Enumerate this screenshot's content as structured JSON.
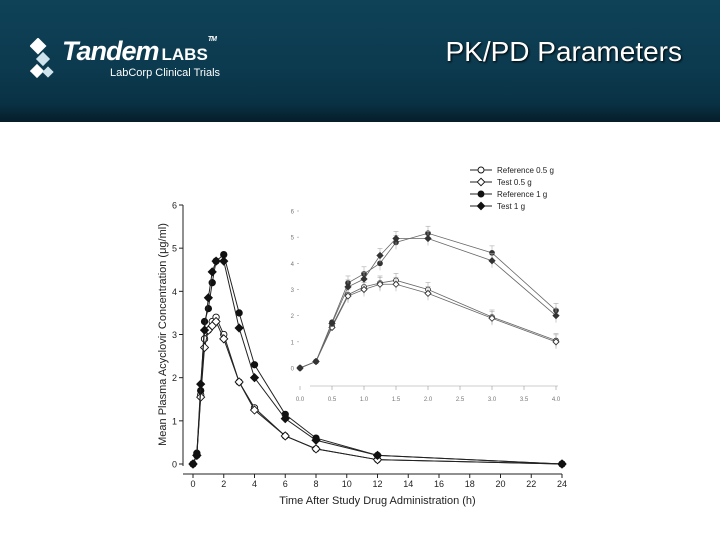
{
  "header": {
    "title": "PK/PD Parameters",
    "logo_brand": "Tandem",
    "logo_labs": "LABS",
    "logo_tm": "TM",
    "logo_sub": "LabCorp Clinical Trials",
    "logo_icon": "tandem-logo-icon",
    "bg_color": "#0c3a4f"
  },
  "chart_data": [
    {
      "type": "line",
      "xlabel": "Time After Study Drug Administration (h)",
      "ylabel": "Mean Plasma Acyclovir Concentration (μg/ml)",
      "xlim": [
        0,
        24
      ],
      "ylim": [
        0,
        6
      ],
      "xticks": [
        "0",
        "2",
        "4",
        "6",
        "8",
        "10",
        "12",
        "14",
        "16",
        "18",
        "20",
        "22",
        "24"
      ],
      "yticks": [
        "0",
        "1",
        "2",
        "3",
        "4",
        "5",
        "6"
      ],
      "grid": false,
      "series": [
        {
          "name": "Reference 0.5 g",
          "marker": "circle-open",
          "x": [
            0,
            0.25,
            0.5,
            0.75,
            1,
            1.25,
            1.5,
            2,
            3,
            4,
            6,
            8,
            12,
            24
          ],
          "y": [
            0.0,
            0.2,
            1.6,
            2.9,
            3.1,
            3.3,
            3.4,
            3.0,
            1.9,
            1.3,
            0.65,
            0.35,
            0.1,
            0.0
          ]
        },
        {
          "name": "Test 0.5 g",
          "marker": "diamond-open",
          "x": [
            0,
            0.25,
            0.5,
            0.75,
            1,
            1.25,
            1.5,
            2,
            3,
            4,
            6,
            8,
            12,
            24
          ],
          "y": [
            0.0,
            0.2,
            1.55,
            2.7,
            3.1,
            3.2,
            3.3,
            2.9,
            1.9,
            1.25,
            0.65,
            0.35,
            0.1,
            0.0
          ]
        },
        {
          "name": "Reference 1 g",
          "marker": "circle-filled",
          "x": [
            0,
            0.25,
            0.5,
            0.75,
            1,
            1.25,
            1.5,
            2,
            3,
            4,
            6,
            8,
            12,
            24
          ],
          "y": [
            0.0,
            0.25,
            1.7,
            3.3,
            3.6,
            4.2,
            4.7,
            4.85,
            3.5,
            2.3,
            1.15,
            0.6,
            0.2,
            0.0
          ]
        },
        {
          "name": "Test 1 g",
          "marker": "diamond-filled",
          "x": [
            0,
            0.25,
            0.5,
            0.75,
            1,
            1.25,
            1.5,
            2,
            3,
            4,
            6,
            8,
            12,
            24
          ],
          "y": [
            0.0,
            0.2,
            1.85,
            3.1,
            3.85,
            4.45,
            4.7,
            4.7,
            3.15,
            2.0,
            1.05,
            0.55,
            0.2,
            0.0
          ]
        }
      ]
    },
    {
      "type": "line",
      "inset": true,
      "xlim": [
        0,
        4
      ],
      "ylim": [
        0,
        6
      ],
      "xticks": [
        "0.0",
        "0.5",
        "1.0",
        "1.5",
        "2.0",
        "2.5",
        "3.0",
        "3.5",
        "4.0"
      ],
      "yticks": [
        "0",
        "1",
        "2",
        "3",
        "4",
        "5",
        "6"
      ],
      "legend_position": "top-right",
      "series": [
        {
          "name": "Reference 0.5 g",
          "marker": "circle-open",
          "x": [
            0,
            0.25,
            0.5,
            0.75,
            1,
            1.25,
            1.5,
            2,
            3,
            4
          ],
          "y": [
            0.0,
            0.25,
            1.6,
            2.8,
            3.1,
            3.25,
            3.35,
            3.0,
            1.95,
            1.05
          ]
        },
        {
          "name": "Test 0.5 g",
          "marker": "diamond-open",
          "x": [
            0,
            0.25,
            0.5,
            0.75,
            1,
            1.25,
            1.5,
            2,
            3,
            4
          ],
          "y": [
            0.0,
            0.25,
            1.55,
            2.75,
            3.0,
            3.2,
            3.2,
            2.85,
            1.9,
            1.0
          ]
        },
        {
          "name": "Reference 1 g",
          "marker": "circle-filled",
          "x": [
            0,
            0.25,
            0.5,
            0.75,
            1,
            1.25,
            1.5,
            2,
            3,
            4
          ],
          "y": [
            0.0,
            0.25,
            1.75,
            3.25,
            3.6,
            4.0,
            4.8,
            5.15,
            4.4,
            2.2
          ]
        },
        {
          "name": "Test 1 g",
          "marker": "diamond-filled",
          "x": [
            0,
            0.25,
            0.5,
            0.75,
            1,
            1.25,
            1.5,
            2,
            3,
            4
          ],
          "y": [
            0.0,
            0.25,
            1.7,
            3.1,
            3.4,
            4.3,
            4.95,
            4.95,
            4.1,
            2.0
          ]
        }
      ]
    }
  ]
}
